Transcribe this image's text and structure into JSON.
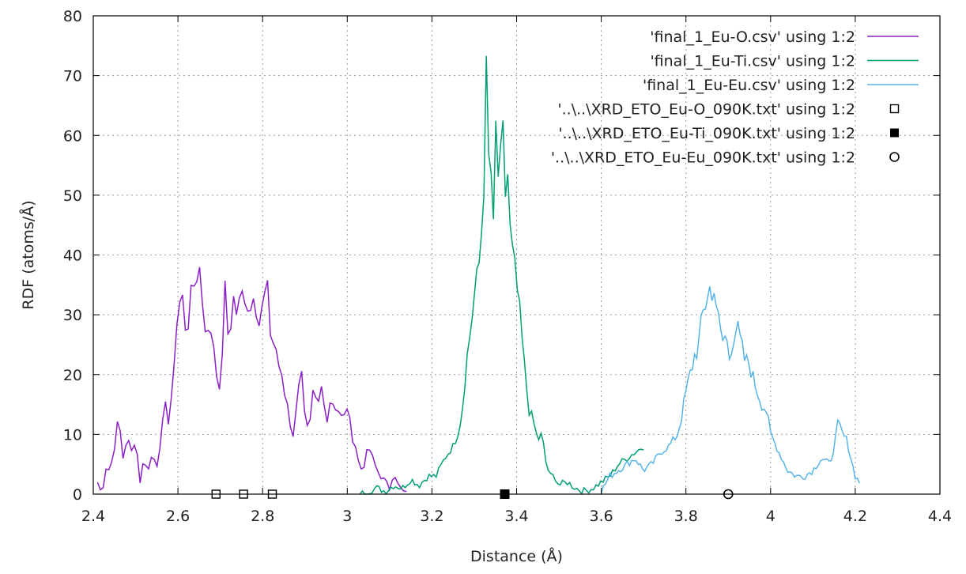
{
  "chart_data": {
    "type": "line",
    "xlabel": "Distance (Å)",
    "ylabel": "RDF (atoms/Å)",
    "xlim": [
      2.4,
      4.4
    ],
    "ylim": [
      0,
      80
    ],
    "xticks": [
      2.4,
      2.6,
      2.8,
      3,
      3.2,
      3.4,
      3.6,
      3.8,
      4,
      4.2,
      4.4
    ],
    "xtick_labels": [
      "2.4",
      "2.6",
      "2.8",
      "3",
      "3.2",
      "3.4",
      "3.6",
      "3.8",
      "4",
      "4.2",
      "4.4"
    ],
    "yticks": [
      0,
      10,
      20,
      30,
      40,
      50,
      60,
      70,
      80
    ],
    "ytick_labels": [
      "0",
      "10",
      "20",
      "30",
      "40",
      "50",
      "60",
      "70",
      "80"
    ],
    "grid": true,
    "legend_position": "top-right",
    "series": [
      {
        "name": "'final_1_Eu-O.csv' using 1:2",
        "kind": "line",
        "color": "#8a1fc6",
        "x": [
          2.41,
          2.42,
          2.43,
          2.44,
          2.45,
          2.46,
          2.47,
          2.48,
          2.49,
          2.5,
          2.51,
          2.52,
          2.53,
          2.54,
          2.55,
          2.56,
          2.57,
          2.58,
          2.59,
          2.6,
          2.61,
          2.62,
          2.63,
          2.64,
          2.65,
          2.66,
          2.67,
          2.68,
          2.69,
          2.7,
          2.71,
          2.72,
          2.73,
          2.74,
          2.75,
          2.76,
          2.77,
          2.78,
          2.79,
          2.8,
          2.81,
          2.82,
          2.83,
          2.84,
          2.85,
          2.86,
          2.87,
          2.88,
          2.89,
          2.9,
          2.91,
          2.92,
          2.93,
          2.94,
          2.95,
          2.96,
          2.97,
          2.98,
          2.99,
          3.0,
          3.01,
          3.02,
          3.03,
          3.04,
          3.05,
          3.06,
          3.07,
          3.08,
          3.09,
          3.1,
          3.11,
          3.12,
          3.13,
          3.14
        ],
        "y": [
          2,
          0,
          4.5,
          4,
          8,
          13,
          6,
          9.5,
          7,
          9.5,
          2,
          6,
          4,
          7,
          5,
          8,
          17,
          10,
          22,
          31,
          33,
          27,
          32,
          36,
          38.5,
          31,
          26,
          28,
          22,
          15,
          35,
          25,
          33,
          30,
          33,
          34,
          30,
          36,
          28,
          31,
          35,
          26,
          25,
          21,
          17,
          15,
          9,
          14,
          24,
          12,
          10,
          17,
          14,
          18,
          12,
          16,
          15,
          14,
          12,
          15,
          10,
          8,
          4,
          5,
          8,
          6,
          4,
          3,
          2,
          1,
          4,
          1.5,
          0.5,
          0
        ],
        "points": 110
      },
      {
        "name": "'final_1_Eu-Ti.csv' using 1:2",
        "kind": "line",
        "color": "#009e73",
        "x": [
          3.03,
          3.05,
          3.07,
          3.09,
          3.11,
          3.13,
          3.15,
          3.17,
          3.19,
          3.21,
          3.23,
          3.25,
          3.26,
          3.27,
          3.28,
          3.29,
          3.3,
          3.31,
          3.32,
          3.325,
          3.33,
          3.335,
          3.34,
          3.345,
          3.35,
          3.355,
          3.36,
          3.365,
          3.37,
          3.375,
          3.38,
          3.385,
          3.39,
          3.4,
          3.41,
          3.42,
          3.43,
          3.44,
          3.45,
          3.46,
          3.47,
          3.48,
          3.49,
          3.5,
          3.52,
          3.54,
          3.56,
          3.58,
          3.6,
          3.62,
          3.64,
          3.66,
          3.68,
          3.7
        ],
        "y": [
          0,
          0.5,
          1,
          0.5,
          1.5,
          1,
          2.5,
          1.5,
          3,
          3,
          6,
          8,
          10,
          13,
          21,
          27,
          33,
          37,
          47,
          58,
          74,
          51,
          54,
          42,
          62,
          55,
          50,
          60,
          58,
          47,
          55,
          43,
          40,
          35,
          28,
          20,
          14,
          12,
          9,
          10,
          5,
          3,
          3,
          1.5,
          2,
          1,
          0.5,
          1,
          2,
          3,
          5,
          6,
          7,
          8
        ],
        "points": 120
      },
      {
        "name": "'final_1_Eu-Eu.csv' using 1:2",
        "kind": "line",
        "color": "#56b4e9",
        "x": [
          3.6,
          3.62,
          3.64,
          3.66,
          3.68,
          3.7,
          3.72,
          3.74,
          3.76,
          3.78,
          3.79,
          3.8,
          3.81,
          3.82,
          3.83,
          3.84,
          3.85,
          3.855,
          3.86,
          3.865,
          3.87,
          3.88,
          3.89,
          3.895,
          3.9,
          3.91,
          3.92,
          3.93,
          3.94,
          3.95,
          3.96,
          3.97,
          3.98,
          3.99,
          4.0,
          4.02,
          4.04,
          4.06,
          4.08,
          4.1,
          4.12,
          4.14,
          4.15,
          4.16,
          4.17,
          4.18,
          4.19,
          4.2,
          4.21
        ],
        "y": [
          0.5,
          3,
          4,
          5,
          6,
          4,
          5,
          7,
          8,
          10,
          13,
          17,
          20,
          23,
          25,
          30,
          33,
          36,
          30,
          37,
          33,
          27,
          25,
          28,
          22,
          26,
          28,
          25,
          22,
          22,
          19,
          17,
          15,
          14,
          10,
          7,
          4,
          3,
          3,
          4,
          6,
          5,
          8,
          12,
          10,
          9,
          6,
          3,
          2
        ],
        "points": 120
      },
      {
        "name": "'..\\..\\XRD_ETO_Eu-O_090K.txt' using 1:2",
        "kind": "points",
        "marker": "open-square",
        "color": "#000000",
        "x": [
          2.69,
          2.755,
          2.823
        ],
        "y": [
          0,
          0,
          0
        ]
      },
      {
        "name": "'..\\..\\XRD_ETO_Eu-Ti_090K.txt' using 1:2",
        "kind": "points",
        "marker": "filled-square",
        "color": "#000000",
        "x": [
          3.372
        ],
        "y": [
          0
        ]
      },
      {
        "name": "'..\\..\\XRD_ETO_Eu-Eu_090K.txt' using 1:2",
        "kind": "points",
        "marker": "open-circle",
        "color": "#000000",
        "x": [
          3.9
        ],
        "y": [
          0
        ]
      }
    ]
  }
}
